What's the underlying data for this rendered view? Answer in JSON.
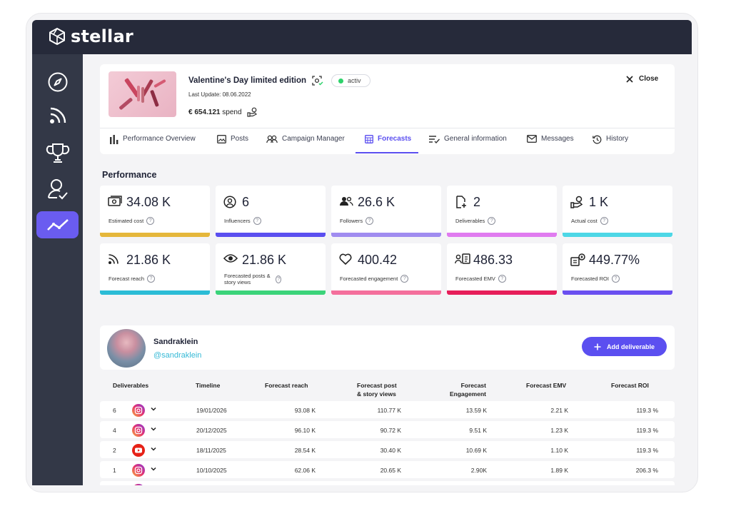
{
  "app": {
    "name": "stellar"
  },
  "campaign": {
    "title": "Valentine's Day limited edition",
    "status": "activ",
    "last_update": "Last Update: 08.06.2022",
    "spend_amount": "€ 654.121",
    "spend_label": "spend",
    "close_label": "Close"
  },
  "tabs": [
    {
      "label": "Performance Overview",
      "icon": "bar-chart-icon"
    },
    {
      "label": "Posts",
      "icon": "image-icon"
    },
    {
      "label": "Campaign Manager",
      "icon": "people-icon"
    },
    {
      "label": "Forecasts",
      "icon": "calendar-table-icon"
    },
    {
      "label": "General information",
      "icon": "list-check-icon"
    },
    {
      "label": "Messages",
      "icon": "mail-icon"
    },
    {
      "label": "History",
      "icon": "history-icon"
    }
  ],
  "performance": {
    "title": "Performance",
    "kpis": [
      {
        "value": "34.08 K",
        "label": "Estimated cost",
        "icon": "money-icon",
        "color": "#e5b73b"
      },
      {
        "value": "6",
        "label": "Influencers",
        "icon": "user-circle-icon",
        "color": "#5b4ff0"
      },
      {
        "value": "26.6 K",
        "label": "Followers",
        "icon": "followers-icon",
        "color": "#a08cf0"
      },
      {
        "value": "2",
        "label": "Deliverables",
        "icon": "file-add-icon",
        "color": "#e07bf0"
      },
      {
        "value": "1 K",
        "label": "Actual cost",
        "icon": "hand-coin-icon",
        "color": "#4dd7e6"
      },
      {
        "value": "21.86 K",
        "label": "Forecast reach",
        "icon": "rss-icon",
        "color": "#2bbcd6"
      },
      {
        "value": "21.86 K",
        "label": "Forecasted posts & story views",
        "icon": "eye-icon",
        "color": "#3bd37a"
      },
      {
        "value": "400.42",
        "label": "Forecasted engagement",
        "icon": "heart-icon",
        "color": "#f46f9c"
      },
      {
        "value": "486.33",
        "label": "Forecasted EMV",
        "icon": "media-value-icon",
        "color": "#e61e5a"
      },
      {
        "value": "449.77%",
        "label": "Forecasted ROI",
        "icon": "roi-icon",
        "color": "#6a4ff0"
      }
    ]
  },
  "influencer": {
    "name": "Sandraklein",
    "handle": "@sandraklein",
    "add_label": "Add deliverable"
  },
  "table": {
    "headers": [
      "Deliverables",
      "Timeline",
      "Forecast reach",
      "Forecast post\n& story views",
      "Forecast\nEngagement",
      "Forecast EMV",
      "Forecast ROI"
    ],
    "rows": [
      {
        "count": "6",
        "platform": "instagram",
        "timeline": "19/01/2026",
        "reach": "93.08 K",
        "views": "110.77 K",
        "engagement": "13.59 K",
        "emv": "2.21 K",
        "roi": "119.3 %"
      },
      {
        "count": "4",
        "platform": "instagram",
        "timeline": "20/12/2025",
        "reach": "96.10 K",
        "views": "90.72 K",
        "engagement": "9.51 K",
        "emv": "1.23 K",
        "roi": "119.3 %"
      },
      {
        "count": "2",
        "platform": "youtube",
        "timeline": "18/11/2025",
        "reach": "28.54 K",
        "views": "30.40 K",
        "engagement": "10.69 K",
        "emv": "1.10 K",
        "roi": "119.3 %"
      },
      {
        "count": "1",
        "platform": "instagram",
        "timeline": "10/10/2025",
        "reach": "62.06 K",
        "views": "20.65 K",
        "engagement": "2.90K",
        "emv": "1.89 K",
        "roi": "206.3 %"
      }
    ]
  },
  "sidebar": [
    {
      "icon": "compass-icon"
    },
    {
      "icon": "rss-icon"
    },
    {
      "icon": "trophy-icon"
    },
    {
      "icon": "user-check-icon"
    },
    {
      "icon": "trend-icon",
      "active": true
    }
  ]
}
